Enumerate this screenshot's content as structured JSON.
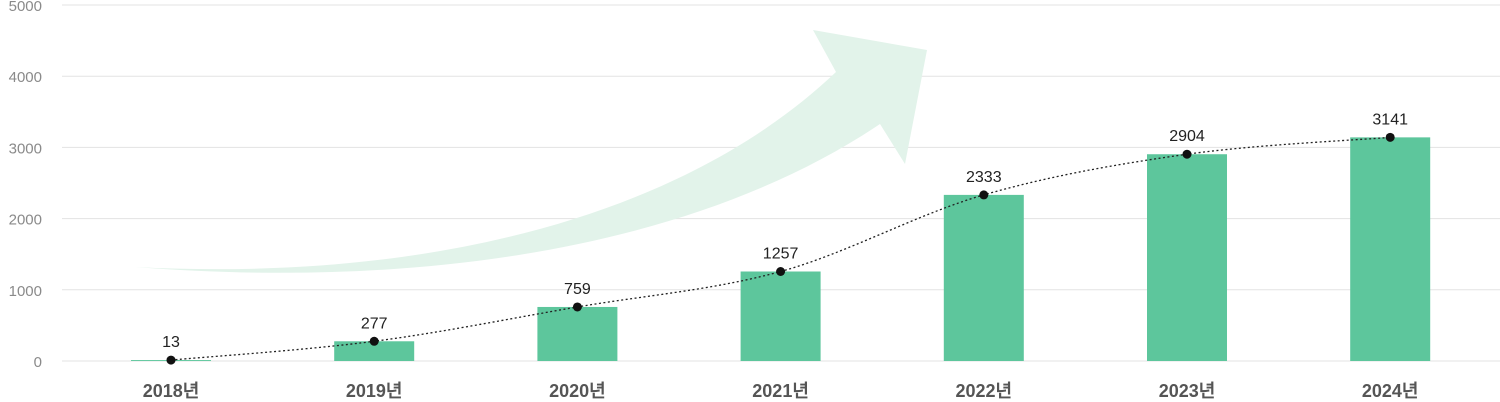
{
  "chart_data": {
    "type": "bar",
    "categories": [
      "2018년",
      "2019년",
      "2020년",
      "2021년",
      "2022년",
      "2023년",
      "2024년"
    ],
    "values": [
      13,
      277,
      759,
      1257,
      2333,
      2904,
      3141
    ],
    "data_labels": [
      "13",
      "277",
      "759",
      "1257",
      "2333",
      "2904",
      "3141"
    ],
    "y_ticks": [
      "0",
      "1000",
      "2000",
      "3000",
      "4000",
      "5000"
    ],
    "ylim": [
      0,
      5000
    ],
    "grid": true,
    "trend_line": "dotted",
    "decoration": "growth-arrow",
    "colors": {
      "bar": "#5dc69c",
      "arrow": "#e2f3ea",
      "grid": "#e3e3e3",
      "point": "#111111"
    }
  }
}
